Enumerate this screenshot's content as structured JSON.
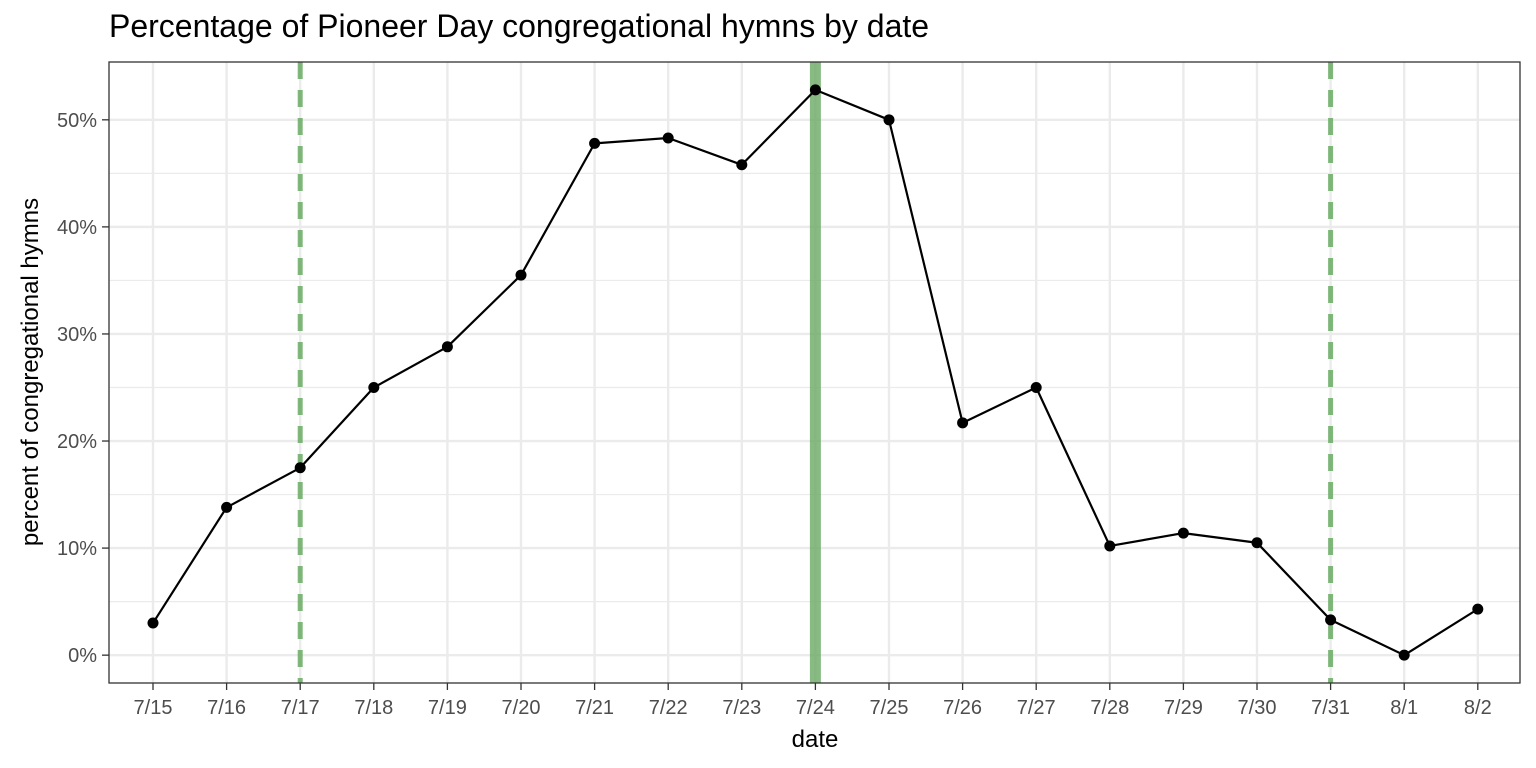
{
  "chart_data": {
    "type": "line",
    "title": "Percentage of Pioneer Day congregational hymns by date",
    "xlabel": "date",
    "ylabel": "percent of congregational hymns",
    "categories": [
      "7/15",
      "7/16",
      "7/17",
      "7/18",
      "7/19",
      "7/20",
      "7/21",
      "7/22",
      "7/23",
      "7/24",
      "7/25",
      "7/26",
      "7/27",
      "7/28",
      "7/29",
      "7/30",
      "7/31",
      "8/1",
      "8/2"
    ],
    "values": [
      3.0,
      13.8,
      17.5,
      25.0,
      28.8,
      35.5,
      47.8,
      48.3,
      45.8,
      52.8,
      50.0,
      21.7,
      25.0,
      10.2,
      11.4,
      10.5,
      3.3,
      0.0,
      4.3
    ],
    "y_ticks": [
      "0%",
      "10%",
      "20%",
      "30%",
      "40%",
      "50%"
    ],
    "y_tick_values": [
      0,
      10,
      20,
      30,
      40,
      50
    ],
    "ylim": [
      -2.6,
      55.4
    ],
    "grid": true,
    "reference_lines": [
      {
        "date": "7/17",
        "style": "dashed"
      },
      {
        "date": "7/24",
        "style": "solid"
      },
      {
        "date": "7/31",
        "style": "dashed"
      }
    ],
    "colors": {
      "series": "#000000",
      "reference_line": "#6aaa64",
      "grid": "#ebebeb",
      "panel_border": "#333333"
    }
  }
}
